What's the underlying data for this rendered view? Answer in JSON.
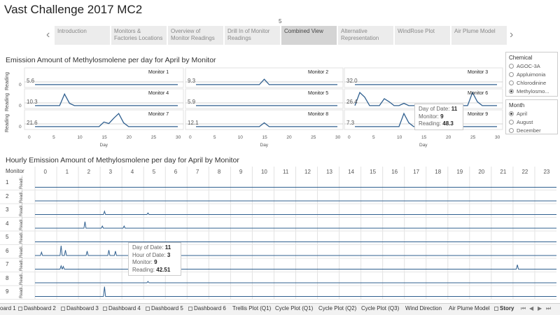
{
  "title": "Vast Challenge 2017 MC2",
  "story_indicator": "5",
  "nav": {
    "tabs": [
      {
        "label": "Introduction"
      },
      {
        "label": "Monitors & Factories Locations"
      },
      {
        "label": "Overview of Monitor Readings"
      },
      {
        "label": "Drill In of Monitor Readings"
      },
      {
        "label": "Combined View",
        "active": true
      },
      {
        "label": "Alternative Representation"
      },
      {
        "label": "WindRose Plot"
      },
      {
        "label": "Air Plume Model"
      }
    ],
    "prev": "‹",
    "next": "›"
  },
  "daily": {
    "title": "Emission Amount of Methylosmolene per day for April by Monitor",
    "y_title": "Reading",
    "x_title": "Day",
    "x_ticks": [
      "0",
      "5",
      "10",
      "15",
      "20",
      "25",
      "30"
    ],
    "zero": "0",
    "monitors": [
      {
        "name": "Monitor 1",
        "ref": "5.6"
      },
      {
        "name": "Monitor 2",
        "ref": "9.3"
      },
      {
        "name": "Monitor 3",
        "ref": "32.0"
      },
      {
        "name": "Monitor 4",
        "ref": "10.3"
      },
      {
        "name": "Monitor 5",
        "ref": "5.9"
      },
      {
        "name": "Monitor 6",
        "ref": "26.4"
      },
      {
        "name": "Monitor 7",
        "ref": "21.6"
      },
      {
        "name": "Monitor 8",
        "ref": "12.1"
      },
      {
        "name": "Monitor 9",
        "ref": "7.3"
      }
    ],
    "tooltip": {
      "l1": "Day of Date:",
      "v1": "11",
      "l2": "Monitor:",
      "v2": "9",
      "l3": "Reading:",
      "v3": "48.3"
    }
  },
  "legend": {
    "chemical_title": "Chemical",
    "chemicals": [
      "AGOC-3A",
      "Appluimonia",
      "Chlorodinine",
      "Methylosmo..."
    ],
    "chemical_selected": 3,
    "month_title": "Month",
    "months": [
      "April",
      "August",
      "December"
    ],
    "month_selected": 0
  },
  "hourly": {
    "title": "Hourly Emission Amount of Methylosmolene per day for April by Monitor",
    "monitor_header": "Monitor",
    "hours": [
      "0",
      "1",
      "2",
      "3",
      "4",
      "5",
      "6",
      "7",
      "8",
      "9",
      "10",
      "11",
      "12",
      "13",
      "14",
      "15",
      "16",
      "17",
      "18",
      "19",
      "20",
      "21",
      "22",
      "23"
    ],
    "rows": [
      "1",
      "2",
      "3",
      "4",
      "5",
      "6",
      "7",
      "8",
      "9"
    ],
    "y_title": "Readi..",
    "tooltip": {
      "l1": "Day of Date:",
      "v1": "11",
      "l2": "Hour of Date:",
      "v2": "3",
      "l3": "Monitor:",
      "v3": "9",
      "l4": "Reading:",
      "v4": "42.51"
    }
  },
  "bottom_tabs": [
    {
      "label": "oard 1"
    },
    {
      "label": "Dashboard 2"
    },
    {
      "label": "Dashboard 3"
    },
    {
      "label": "Dashboard 4"
    },
    {
      "label": "Dashboard 5"
    },
    {
      "label": "Dashboard 6"
    },
    {
      "label": "Trellis Plot (Q1)"
    },
    {
      "label": "Cycle Plot (Q1)"
    },
    {
      "label": "Cycle Plot (Q2)"
    },
    {
      "label": "Cycle Plot (Q3)"
    },
    {
      "label": "Wind Direction"
    },
    {
      "label": "Air Plume Model"
    },
    {
      "label": "Story",
      "active": true
    }
  ],
  "colors": {
    "line": "#2f5f8f",
    "grid": "#dddddd"
  }
}
